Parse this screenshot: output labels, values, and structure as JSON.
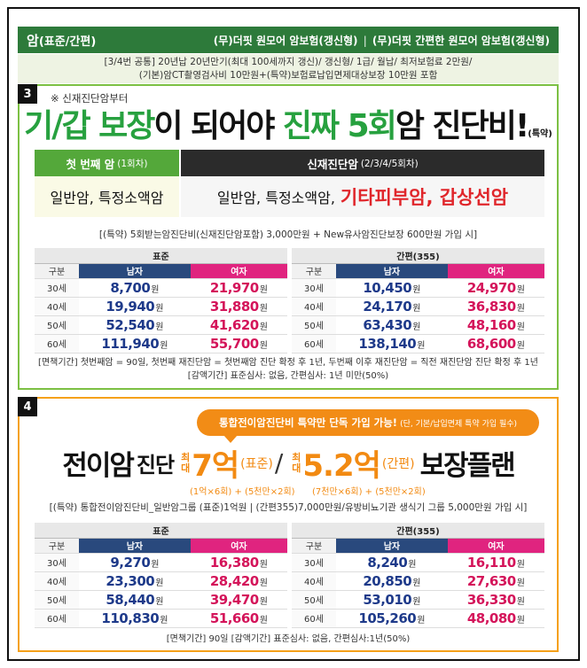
{
  "header": {
    "title_main": "암",
    "title_paren": "(표준/간편)",
    "product1": "(무)더핏 원모어 암보험(갱신형)",
    "divider": "|",
    "product2": "(무)더핏 간편한 원모어 암보험(갱신형)"
  },
  "subheader": {
    "line1": "[3/4번 공통] 20년납 20년만기(최대 100세까지 갱신)/ 갱신형/ 1급/ 월납/ 최저보험료 2만원/",
    "line2": "(기본)암CT촬영검사비 10만원+(특약)보험료납입면제대상보장 10만원 포함"
  },
  "section3": {
    "number": "3",
    "note": "※ 신재진단암부터",
    "title_a": "기/갑 보장",
    "title_b": "이 되어야 ",
    "title_c": "진짜 5회",
    "title_d": "암 진단비!",
    "title_suffix": "(특약)",
    "first_label": "첫 번째 암",
    "first_paren": "(1회차)",
    "re_label": "신재진단암",
    "re_paren": "(2/3/4/5회차)",
    "first_desc": "일반암, 특정소액암",
    "re_desc": "일반암, 특정소액암,",
    "re_highlight": "기타피부암, 갑상선암",
    "info": "[(특약) 5회받는암진단비(신재진단암포함) 3,000만원 + New유사암진단보장 600만원 가입 시]",
    "tables": [
      {
        "title": "표준",
        "headers": [
          "구분",
          "남자",
          "여자"
        ],
        "rows": [
          {
            "age": "30세",
            "male": "8,700",
            "female": "21,970"
          },
          {
            "age": "40세",
            "male": "19,940",
            "female": "31,880"
          },
          {
            "age": "50세",
            "male": "52,540",
            "female": "41,620"
          },
          {
            "age": "60세",
            "male": "111,940",
            "female": "55,700"
          }
        ]
      },
      {
        "title": "간편(355)",
        "headers": [
          "구분",
          "남자",
          "여자"
        ],
        "rows": [
          {
            "age": "30세",
            "male": "10,450",
            "female": "24,970"
          },
          {
            "age": "40세",
            "male": "24,170",
            "female": "36,830"
          },
          {
            "age": "50세",
            "male": "63,430",
            "female": "48,160"
          },
          {
            "age": "60세",
            "male": "138,140",
            "female": "68,600"
          }
        ]
      }
    ],
    "won": "원",
    "foot1": "[면책기간] 첫번째암 = 90일, 첫번째 재진단암 = 첫번째암 진단 확정 후 1년, 두번째 이후 재진단암 = 직전 재진단암 진단 확정 후 1년",
    "foot2": "[감액기간] 표준심사: 없음, 간편심사: 1년 미만(50%)"
  },
  "section4": {
    "number": "4",
    "bubble": "통합전이암진단비 특약만 단독 가입 가능!",
    "bubble_note": "(단, 기본/납입면제 특약 가입 필수)",
    "title_a": "전이암",
    "title_b": "진단",
    "max1_top": "최",
    "max1_bottom": "대",
    "amount1": "7억",
    "paren1": "(표준)",
    "slash": "/",
    "max2_top": "최",
    "max2_bottom": "대",
    "amount2": "5.2억",
    "paren2": "(간편)",
    "title_c": "보장플랜",
    "sub1": "(1억×6회) + (5천만×2회)",
    "sub2": "(7천만×6회) + (5천만×2회)",
    "info": "[(특약) 통합전이암진단비_일반암그룹 (표준)1억원 | (간편355)7,000만원/유방비뇨기관 생식기 그룹 5,000만원 가입 시]",
    "tables": [
      {
        "title": "표준",
        "headers": [
          "구분",
          "남자",
          "여자"
        ],
        "rows": [
          {
            "age": "30세",
            "male": "9,270",
            "female": "16,380"
          },
          {
            "age": "40세",
            "male": "23,300",
            "female": "28,420"
          },
          {
            "age": "50세",
            "male": "58,440",
            "female": "39,470"
          },
          {
            "age": "60세",
            "male": "110,830",
            "female": "51,660"
          }
        ]
      },
      {
        "title": "간편(355)",
        "headers": [
          "구분",
          "남자",
          "여자"
        ],
        "rows": [
          {
            "age": "30세",
            "male": "8,240",
            "female": "16,110"
          },
          {
            "age": "40세",
            "male": "20,850",
            "female": "27,630"
          },
          {
            "age": "50세",
            "male": "53,010",
            "female": "36,330"
          },
          {
            "age": "60세",
            "male": "105,260",
            "female": "48,080"
          }
        ]
      }
    ],
    "won": "원",
    "foot": "[면책기간] 90일 [감액기간] 표준심사: 없음, 간편심사:1년(50%)"
  },
  "colors": {
    "header_green": "#2d7a3a",
    "section3_border": "#7cc043",
    "section4_border": "#f5a11a",
    "male_header": "#29497d",
    "female_header": "#e0247f",
    "highlight_red": "#e0262b"
  }
}
